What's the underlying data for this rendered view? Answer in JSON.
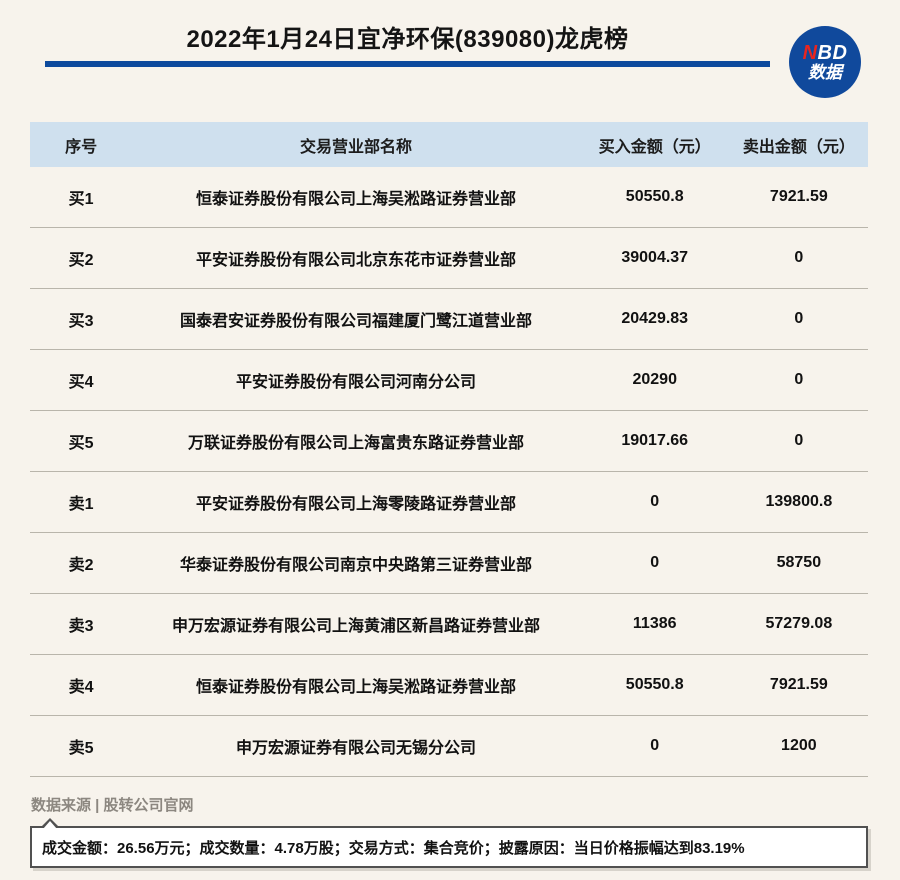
{
  "header": {
    "title": "2022年1月24日宜净环保(839080)龙虎榜",
    "logo": {
      "n": "N",
      "bd": "BD",
      "line2": "数据"
    }
  },
  "chart_data": {
    "type": "table",
    "title": "2022年1月24日宜净环保(839080)龙虎榜",
    "columns": [
      "序号",
      "交易营业部名称",
      "买入金额（元）",
      "卖出金额（元）"
    ],
    "rows": [
      {
        "rank": "买1",
        "name": "恒泰证券股份有限公司上海吴淞路证券营业部",
        "buy": 50550.8,
        "sell": 7921.59
      },
      {
        "rank": "买2",
        "name": "平安证券股份有限公司北京东花市证券营业部",
        "buy": 39004.37,
        "sell": 0
      },
      {
        "rank": "买3",
        "name": "国泰君安证券股份有限公司福建厦门鹭江道营业部",
        "buy": 20429.83,
        "sell": 0
      },
      {
        "rank": "买4",
        "name": "平安证券股份有限公司河南分公司",
        "buy": 20290,
        "sell": 0
      },
      {
        "rank": "买5",
        "name": "万联证券股份有限公司上海富贵东路证券营业部",
        "buy": 19017.66,
        "sell": 0
      },
      {
        "rank": "卖1",
        "name": "平安证券股份有限公司上海零陵路证券营业部",
        "buy": 0,
        "sell": 139800.8
      },
      {
        "rank": "卖2",
        "name": "华泰证券股份有限公司南京中央路第三证券营业部",
        "buy": 0,
        "sell": 58750
      },
      {
        "rank": "卖3",
        "name": "申万宏源证券有限公司上海黄浦区新昌路证券营业部",
        "buy": 11386,
        "sell": 57279.08
      },
      {
        "rank": "卖4",
        "name": "恒泰证券股份有限公司上海吴淞路证券营业部",
        "buy": 50550.8,
        "sell": 7921.59
      },
      {
        "rank": "卖5",
        "name": "申万宏源证券有限公司无锡分公司",
        "buy": 0,
        "sell": 1200
      }
    ]
  },
  "footer": {
    "source": "数据来源 | 股转公司官网",
    "note": "成交金额：26.56万元；成交数量：4.78万股；交易方式：集合竞价；披露原因：当日价格振幅达到83.19%"
  },
  "colors": {
    "accent_blue": "#0d4a9d",
    "logo_blue": "#10499c",
    "logo_red": "#e8251f",
    "header_bg": "#cfe0ee",
    "row_border": "#b9b5ab",
    "source_gray": "#8c8780",
    "page_bg": "#f7f3ec",
    "bubble_border": "#515151"
  }
}
